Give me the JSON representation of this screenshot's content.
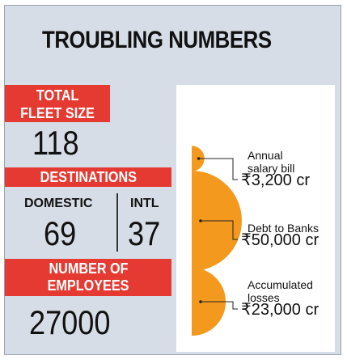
{
  "header": {
    "title": "TROUBLING NUMBERS"
  },
  "fleet": {
    "label_line1": "TOTAL",
    "label_line2": "FLEET SIZE",
    "value": "118"
  },
  "destinations": {
    "label": "DESTINATIONS",
    "domestic_label": "DOMESTIC",
    "domestic_value": "69",
    "intl_label": "INTL",
    "intl_value": "37"
  },
  "employees": {
    "label_line1": "NUMBER OF",
    "label_line2": "EMPLOYEES",
    "value": "27000"
  },
  "colors": {
    "accent_red": "#e53a32",
    "semicircle_orange": "#f39a1e",
    "background": "#d6dde6"
  },
  "chart_data": {
    "type": "semicircle",
    "unit": "cr",
    "series": [
      {
        "label_line1": "Annual",
        "label_line2": "salary bill",
        "value": 3200,
        "display": "₹3,200 cr"
      },
      {
        "label_line1": "Debt to Banks",
        "label_line2": "",
        "value": 50000,
        "display": "₹50,000 cr"
      },
      {
        "label_line1": "Accumulated",
        "label_line2": "losses",
        "value": 23000,
        "display": "₹23,000 cr"
      }
    ]
  }
}
